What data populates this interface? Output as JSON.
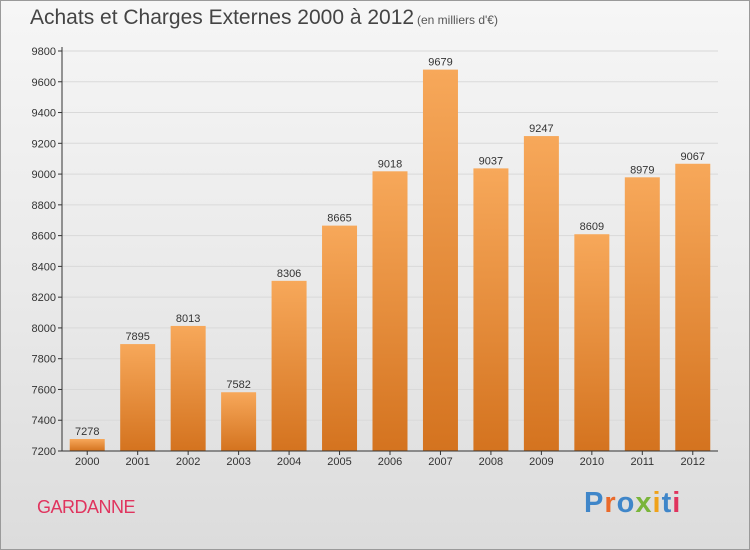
{
  "header": {
    "title": "Achats et Charges Externes 2000 à 2012",
    "subtitle": "(en milliers d'€)"
  },
  "footer": {
    "city": "GARDANNE",
    "logo_text": "Proxiti"
  },
  "colors": {
    "bar_top": "#f7a85a",
    "bar_bottom": "#d4731f",
    "axis": "#333333",
    "grid": "#d9d9d9",
    "city": "#e0345e",
    "logo_letters": [
      "#3f86c9",
      "#ea6a2a",
      "#3f86c9",
      "#7ab53a",
      "#f0a21a",
      "#3f86c9",
      "#e0345e"
    ]
  },
  "chart_data": {
    "type": "bar",
    "title": "Achats et Charges Externes 2000 à 2012",
    "subtitle": "(en milliers d'€)",
    "categories": [
      "2000",
      "2001",
      "2002",
      "2003",
      "2004",
      "2005",
      "2006",
      "2007",
      "2008",
      "2009",
      "2010",
      "2011",
      "2012"
    ],
    "values": [
      7278,
      7895,
      8013,
      7582,
      8306,
      8665,
      9018,
      9679,
      9037,
      9247,
      8609,
      8979,
      9067
    ],
    "ylim": [
      7200,
      9800
    ],
    "yticks": [
      7200,
      7400,
      7600,
      7800,
      8000,
      8200,
      8400,
      8600,
      8800,
      9000,
      9200,
      9400,
      9600,
      9800
    ],
    "grid": true,
    "legend": "none",
    "xlabel": "",
    "ylabel": ""
  }
}
